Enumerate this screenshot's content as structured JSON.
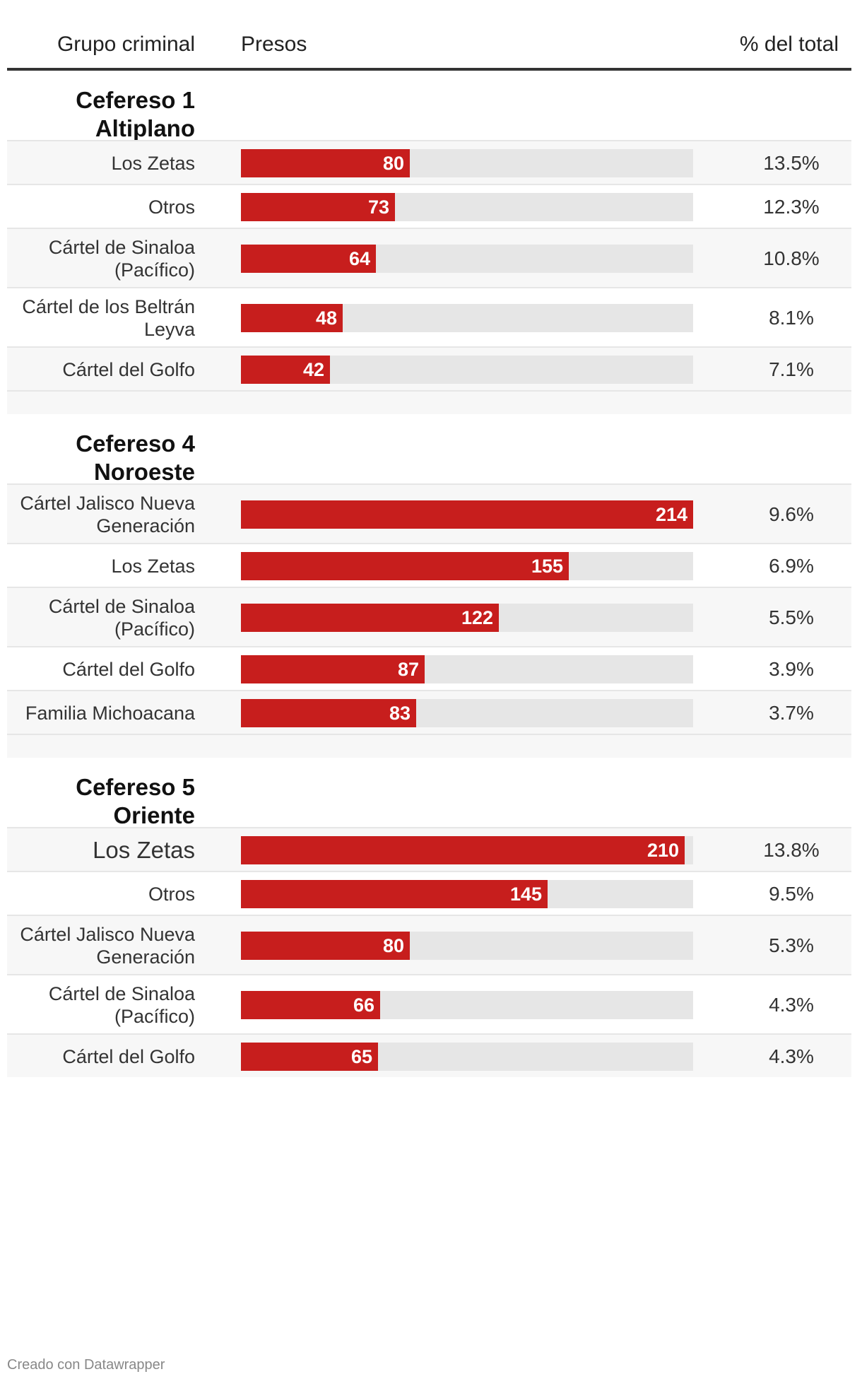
{
  "columns": {
    "group": "Grupo criminal",
    "count": "Presos",
    "percent": "% del total"
  },
  "chart_data": {
    "type": "table",
    "max_value": 214,
    "bar_color": "#c71e1d",
    "bar_bg_color": "#e6e6e6",
    "sections": [
      {
        "title": [
          "Cefereso 1",
          "Altiplano"
        ],
        "rows": [
          {
            "group": [
              "Los Zetas"
            ],
            "value": 80,
            "value_label": "80",
            "percent": "13.5%"
          },
          {
            "group": [
              "Otros"
            ],
            "value": 73,
            "value_label": "73",
            "percent": "12.3%"
          },
          {
            "group": [
              "Cártel de Sinaloa",
              "(Pacífico)"
            ],
            "value": 64,
            "value_label": "64",
            "percent": "10.8%"
          },
          {
            "group": [
              "Cártel de los Beltrán",
              "Leyva"
            ],
            "value": 48,
            "value_label": "48",
            "percent": "8.1%"
          },
          {
            "group": [
              "Cártel del Golfo"
            ],
            "value": 42,
            "value_label": "42",
            "percent": "7.1%"
          }
        ]
      },
      {
        "title": [
          "Cefereso 4",
          "Noroeste"
        ],
        "rows": [
          {
            "group": [
              "Cártel Jalisco Nueva",
              "Generación"
            ],
            "value": 214,
            "value_label": "214",
            "percent": "9.6%"
          },
          {
            "group": [
              "Los Zetas"
            ],
            "value": 155,
            "value_label": "155",
            "percent": "6.9%"
          },
          {
            "group": [
              "Cártel de Sinaloa",
              "(Pacífico)"
            ],
            "value": 122,
            "value_label": "122",
            "percent": "5.5%"
          },
          {
            "group": [
              "Cártel del Golfo"
            ],
            "value": 87,
            "value_label": "87",
            "percent": "3.9%"
          },
          {
            "group": [
              "Familia Michoacana"
            ],
            "value": 83,
            "value_label": "83",
            "percent": "3.7%"
          }
        ]
      },
      {
        "title": [
          "Cefereso 5",
          "Oriente"
        ],
        "rows": [
          {
            "group": [
              "Los Zetas"
            ],
            "value": 210,
            "value_label": "210",
            "percent": "13.8%"
          },
          {
            "group": [
              "Otros"
            ],
            "value": 145,
            "value_label": "145",
            "percent": "9.5%"
          },
          {
            "group": [
              "Cártel Jalisco Nueva",
              "Generación"
            ],
            "value": 80,
            "value_label": "80",
            "percent": "5.3%"
          },
          {
            "group": [
              "Cártel de Sinaloa",
              "(Pacífico)"
            ],
            "value": 66,
            "value_label": "66",
            "percent": "4.3%"
          },
          {
            "group": [
              "Cártel del Golfo"
            ],
            "value": 65,
            "value_label": "65",
            "percent": "4.3%"
          }
        ]
      }
    ]
  },
  "footer": "Creado con Datawrapper"
}
